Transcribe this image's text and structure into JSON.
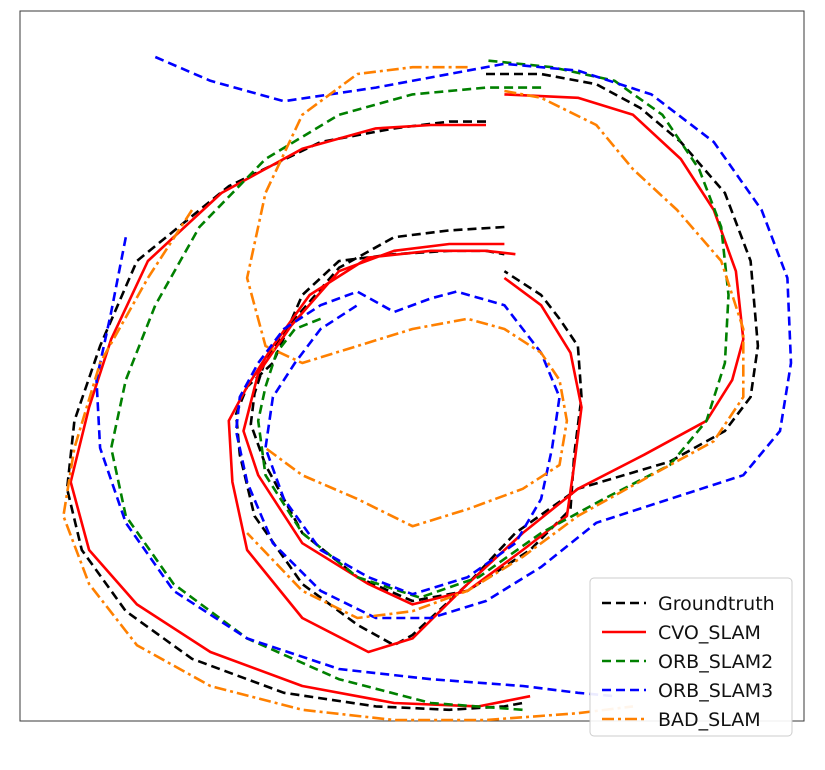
{
  "chart_data": {
    "type": "line",
    "title": "",
    "xlabel": "",
    "ylabel": "",
    "axes_ticks_visible": false,
    "grid": false,
    "legend": "bottom-right",
    "xlim": [
      -1.0,
      1.0
    ],
    "ylim": [
      -1.0,
      1.0
    ],
    "series": [
      {
        "name": "Groundtruth",
        "color": "#000000",
        "dash": "dashed",
        "points": [
          [
            0.2,
            0.76
          ],
          [
            0.1,
            0.76
          ],
          [
            -0.05,
            0.74
          ],
          [
            -0.25,
            0.7
          ],
          [
            -0.5,
            0.57
          ],
          [
            -0.75,
            0.35
          ],
          [
            -0.85,
            0.1
          ],
          [
            -0.92,
            -0.12
          ],
          [
            -0.94,
            -0.32
          ],
          [
            -0.9,
            -0.5
          ],
          [
            -0.78,
            -0.68
          ],
          [
            -0.6,
            -0.82
          ],
          [
            -0.35,
            -0.92
          ],
          [
            -0.1,
            -0.96
          ],
          [
            0.1,
            -0.97
          ],
          [
            0.25,
            -0.96
          ],
          [
            0.3,
            -0.95
          ],
          null,
          [
            0.2,
            0.9
          ],
          [
            0.35,
            0.9
          ],
          [
            0.5,
            0.87
          ],
          [
            0.62,
            0.8
          ],
          [
            0.73,
            0.7
          ],
          [
            0.85,
            0.55
          ],
          [
            0.92,
            0.35
          ],
          [
            0.94,
            0.1
          ],
          [
            0.92,
            -0.05
          ],
          [
            0.85,
            -0.15
          ],
          [
            0.7,
            -0.24
          ],
          [
            0.45,
            -0.32
          ],
          [
            0.28,
            -0.45
          ],
          [
            0.15,
            -0.6
          ],
          [
            0.0,
            -0.75
          ],
          [
            -0.05,
            -0.78
          ],
          [
            -0.15,
            -0.72
          ],
          [
            -0.3,
            -0.6
          ],
          [
            -0.43,
            -0.4
          ],
          [
            -0.47,
            -0.22
          ],
          [
            -0.48,
            -0.1
          ],
          [
            -0.45,
            -0.02
          ],
          [
            -0.38,
            0.05
          ],
          [
            -0.3,
            0.25
          ],
          [
            -0.2,
            0.35
          ],
          [
            -0.05,
            0.37
          ],
          [
            0.1,
            0.38
          ],
          [
            0.2,
            0.38
          ],
          [
            0.25,
            0.37
          ],
          null,
          [
            0.25,
            0.45
          ],
          [
            0.1,
            0.44
          ],
          [
            -0.05,
            0.42
          ],
          [
            -0.2,
            0.33
          ],
          [
            -0.32,
            0.18
          ],
          [
            -0.4,
            0.06
          ],
          [
            -0.43,
            -0.04
          ],
          [
            -0.44,
            -0.13
          ],
          [
            -0.4,
            -0.25
          ],
          [
            -0.3,
            -0.45
          ],
          [
            -0.15,
            -0.58
          ],
          [
            0.0,
            -0.65
          ],
          [
            0.15,
            -0.62
          ],
          [
            0.32,
            -0.5
          ],
          [
            0.43,
            -0.38
          ],
          [
            0.44,
            -0.22
          ],
          [
            0.46,
            -0.05
          ],
          [
            0.45,
            0.1
          ],
          [
            0.4,
            0.18
          ],
          [
            0.35,
            0.25
          ],
          [
            0.25,
            0.32
          ]
        ]
      },
      {
        "name": "CVO_SLAM",
        "color": "#ff0000",
        "dash": "solid",
        "points": [
          [
            0.2,
            0.75
          ],
          [
            0.05,
            0.75
          ],
          [
            -0.1,
            0.74
          ],
          [
            -0.3,
            0.68
          ],
          [
            -0.52,
            0.55
          ],
          [
            -0.72,
            0.35
          ],
          [
            -0.82,
            0.12
          ],
          [
            -0.88,
            -0.08
          ],
          [
            -0.93,
            -0.3
          ],
          [
            -0.88,
            -0.5
          ],
          [
            -0.75,
            -0.66
          ],
          [
            -0.55,
            -0.8
          ],
          [
            -0.3,
            -0.9
          ],
          [
            -0.05,
            -0.95
          ],
          [
            0.18,
            -0.96
          ],
          [
            0.32,
            -0.93
          ],
          null,
          [
            0.25,
            0.84
          ],
          [
            0.45,
            0.83
          ],
          [
            0.6,
            0.78
          ],
          [
            0.73,
            0.65
          ],
          [
            0.82,
            0.5
          ],
          [
            0.88,
            0.32
          ],
          [
            0.9,
            0.12
          ],
          [
            0.87,
            0.0
          ],
          [
            0.8,
            -0.12
          ],
          [
            0.63,
            -0.22
          ],
          [
            0.45,
            -0.32
          ],
          [
            0.3,
            -0.45
          ],
          [
            0.15,
            -0.6
          ],
          [
            0.0,
            -0.76
          ],
          [
            -0.12,
            -0.8
          ],
          [
            -0.3,
            -0.7
          ],
          [
            -0.45,
            -0.5
          ],
          [
            -0.49,
            -0.3
          ],
          [
            -0.5,
            -0.12
          ],
          [
            -0.45,
            -0.02
          ],
          [
            -0.38,
            0.1
          ],
          [
            -0.28,
            0.25
          ],
          [
            -0.12,
            0.36
          ],
          [
            0.05,
            0.38
          ],
          [
            0.2,
            0.38
          ],
          [
            0.28,
            0.37
          ],
          null,
          [
            0.25,
            0.4
          ],
          [
            0.1,
            0.4
          ],
          [
            -0.05,
            0.38
          ],
          [
            -0.2,
            0.32
          ],
          [
            -0.33,
            0.16
          ],
          [
            -0.42,
            0.02
          ],
          [
            -0.46,
            -0.15
          ],
          [
            -0.42,
            -0.28
          ],
          [
            -0.3,
            -0.48
          ],
          [
            -0.12,
            -0.6
          ],
          [
            0.0,
            -0.66
          ],
          [
            0.15,
            -0.62
          ],
          [
            0.3,
            -0.5
          ],
          [
            0.42,
            -0.4
          ],
          [
            0.44,
            -0.25
          ],
          [
            0.46,
            -0.08
          ],
          [
            0.43,
            0.08
          ],
          [
            0.35,
            0.22
          ],
          [
            0.25,
            0.3
          ]
        ]
      },
      {
        "name": "ORB_SLAM2",
        "color": "#008000",
        "dash": "dashed",
        "points": [
          [
            -0.25,
            0.18
          ],
          [
            -0.32,
            0.15
          ],
          [
            -0.37,
            0.08
          ],
          [
            -0.4,
            -0.02
          ],
          [
            -0.42,
            -0.12
          ],
          [
            -0.4,
            -0.28
          ],
          [
            -0.3,
            -0.45
          ],
          [
            -0.15,
            -0.58
          ],
          [
            0.02,
            -0.64
          ],
          [
            0.18,
            -0.58
          ],
          [
            0.35,
            -0.45
          ],
          [
            0.52,
            -0.35
          ],
          [
            0.7,
            -0.25
          ],
          [
            0.8,
            -0.12
          ],
          [
            0.85,
            0.05
          ],
          [
            0.86,
            0.25
          ],
          [
            0.84,
            0.45
          ],
          [
            0.78,
            0.62
          ],
          [
            0.68,
            0.78
          ],
          [
            0.55,
            0.88
          ],
          [
            0.38,
            0.92
          ],
          [
            0.2,
            0.94
          ],
          null,
          [
            0.35,
            0.86
          ],
          [
            0.2,
            0.86
          ],
          [
            0.0,
            0.84
          ],
          [
            -0.2,
            0.78
          ],
          [
            -0.4,
            0.65
          ],
          [
            -0.58,
            0.45
          ],
          [
            -0.7,
            0.22
          ],
          [
            -0.78,
            0.0
          ],
          [
            -0.82,
            -0.2
          ],
          [
            -0.78,
            -0.4
          ],
          [
            -0.65,
            -0.6
          ],
          [
            -0.45,
            -0.76
          ],
          [
            -0.2,
            -0.88
          ],
          [
            0.05,
            -0.95
          ],
          [
            0.3,
            -0.97
          ]
        ]
      },
      {
        "name": "ORB_SLAM3",
        "color": "#0000ff",
        "dash": "dashed",
        "points": [
          [
            -0.7,
            0.95
          ],
          [
            -0.55,
            0.88
          ],
          [
            -0.35,
            0.82
          ],
          [
            -0.1,
            0.86
          ],
          [
            0.1,
            0.9
          ],
          [
            0.25,
            0.93
          ],
          [
            0.45,
            0.91
          ],
          [
            0.65,
            0.84
          ],
          [
            0.82,
            0.7
          ],
          [
            0.95,
            0.5
          ],
          [
            1.02,
            0.3
          ],
          [
            1.03,
            0.05
          ],
          [
            1.0,
            -0.15
          ],
          [
            0.9,
            -0.28
          ],
          [
            0.7,
            -0.35
          ],
          [
            0.5,
            -0.42
          ],
          [
            0.35,
            -0.55
          ],
          [
            0.2,
            -0.65
          ],
          [
            0.05,
            -0.7
          ],
          [
            -0.1,
            -0.7
          ],
          [
            -0.25,
            -0.62
          ],
          [
            -0.38,
            -0.48
          ],
          [
            -0.45,
            -0.3
          ],
          [
            -0.48,
            -0.15
          ],
          [
            -0.47,
            -0.05
          ],
          [
            -0.42,
            0.05
          ],
          [
            -0.35,
            0.15
          ],
          [
            -0.25,
            0.22
          ],
          [
            -0.15,
            0.26
          ],
          [
            -0.05,
            0.2
          ],
          [
            0.05,
            0.24
          ],
          [
            0.12,
            0.26
          ],
          [
            0.25,
            0.22
          ],
          [
            0.35,
            0.08
          ],
          [
            0.4,
            -0.05
          ],
          [
            0.38,
            -0.2
          ],
          [
            0.35,
            -0.35
          ],
          [
            0.28,
            -0.48
          ],
          [
            0.15,
            -0.58
          ],
          [
            0.0,
            -0.63
          ],
          [
            -0.12,
            -0.58
          ],
          [
            -0.25,
            -0.5
          ],
          [
            -0.35,
            -0.35
          ],
          [
            -0.4,
            -0.2
          ],
          [
            -0.38,
            -0.05
          ],
          [
            -0.32,
            0.05
          ],
          [
            -0.25,
            0.15
          ],
          [
            -0.15,
            0.22
          ],
          null,
          [
            -0.78,
            0.42
          ],
          [
            -0.82,
            0.2
          ],
          [
            -0.86,
            0.0
          ],
          [
            -0.85,
            -0.2
          ],
          [
            -0.78,
            -0.42
          ],
          [
            -0.65,
            -0.62
          ],
          [
            -0.45,
            -0.76
          ],
          [
            -0.2,
            -0.85
          ],
          [
            0.05,
            -0.88
          ],
          [
            0.3,
            -0.9
          ],
          [
            0.45,
            -0.92
          ],
          [
            0.55,
            -0.93
          ]
        ]
      },
      {
        "name": "BAD_SLAM",
        "color": "#ff8000",
        "dash": "dashdot",
        "points": [
          [
            0.15,
            0.92
          ],
          [
            0.0,
            0.92
          ],
          [
            -0.15,
            0.9
          ],
          [
            -0.3,
            0.78
          ],
          [
            -0.4,
            0.55
          ],
          [
            -0.45,
            0.3
          ],
          [
            -0.4,
            0.1
          ],
          [
            -0.3,
            0.05
          ],
          [
            -0.15,
            0.1
          ],
          [
            0.0,
            0.15
          ],
          [
            0.15,
            0.18
          ],
          [
            0.25,
            0.15
          ],
          [
            0.35,
            0.08
          ],
          [
            0.4,
            0.0
          ],
          [
            0.42,
            -0.12
          ],
          [
            0.4,
            -0.25
          ],
          [
            0.3,
            -0.32
          ],
          [
            0.15,
            -0.38
          ],
          [
            0.0,
            -0.43
          ],
          [
            -0.15,
            -0.35
          ],
          [
            -0.3,
            -0.28
          ],
          [
            -0.4,
            -0.2
          ],
          null,
          [
            0.25,
            0.85
          ],
          [
            0.35,
            0.83
          ],
          [
            0.5,
            0.75
          ],
          [
            0.6,
            0.62
          ],
          [
            0.72,
            0.5
          ],
          [
            0.84,
            0.35
          ],
          [
            0.9,
            0.15
          ],
          [
            0.9,
            -0.05
          ],
          [
            0.82,
            -0.18
          ],
          [
            0.65,
            -0.28
          ],
          [
            0.45,
            -0.4
          ],
          [
            0.3,
            -0.52
          ],
          [
            0.15,
            -0.62
          ],
          [
            0.0,
            -0.68
          ],
          [
            -0.15,
            -0.7
          ],
          [
            -0.3,
            -0.62
          ],
          [
            -0.45,
            -0.45
          ],
          null,
          [
            -0.6,
            0.5
          ],
          [
            -0.72,
            0.3
          ],
          [
            -0.85,
            0.05
          ],
          [
            -0.92,
            -0.2
          ],
          [
            -0.95,
            -0.4
          ],
          [
            -0.88,
            -0.6
          ],
          [
            -0.75,
            -0.78
          ],
          [
            -0.55,
            -0.9
          ],
          [
            -0.3,
            -0.97
          ],
          [
            -0.05,
            -1.0
          ],
          [
            0.2,
            -1.0
          ],
          [
            0.45,
            -0.98
          ],
          [
            0.6,
            -0.96
          ]
        ]
      }
    ]
  }
}
